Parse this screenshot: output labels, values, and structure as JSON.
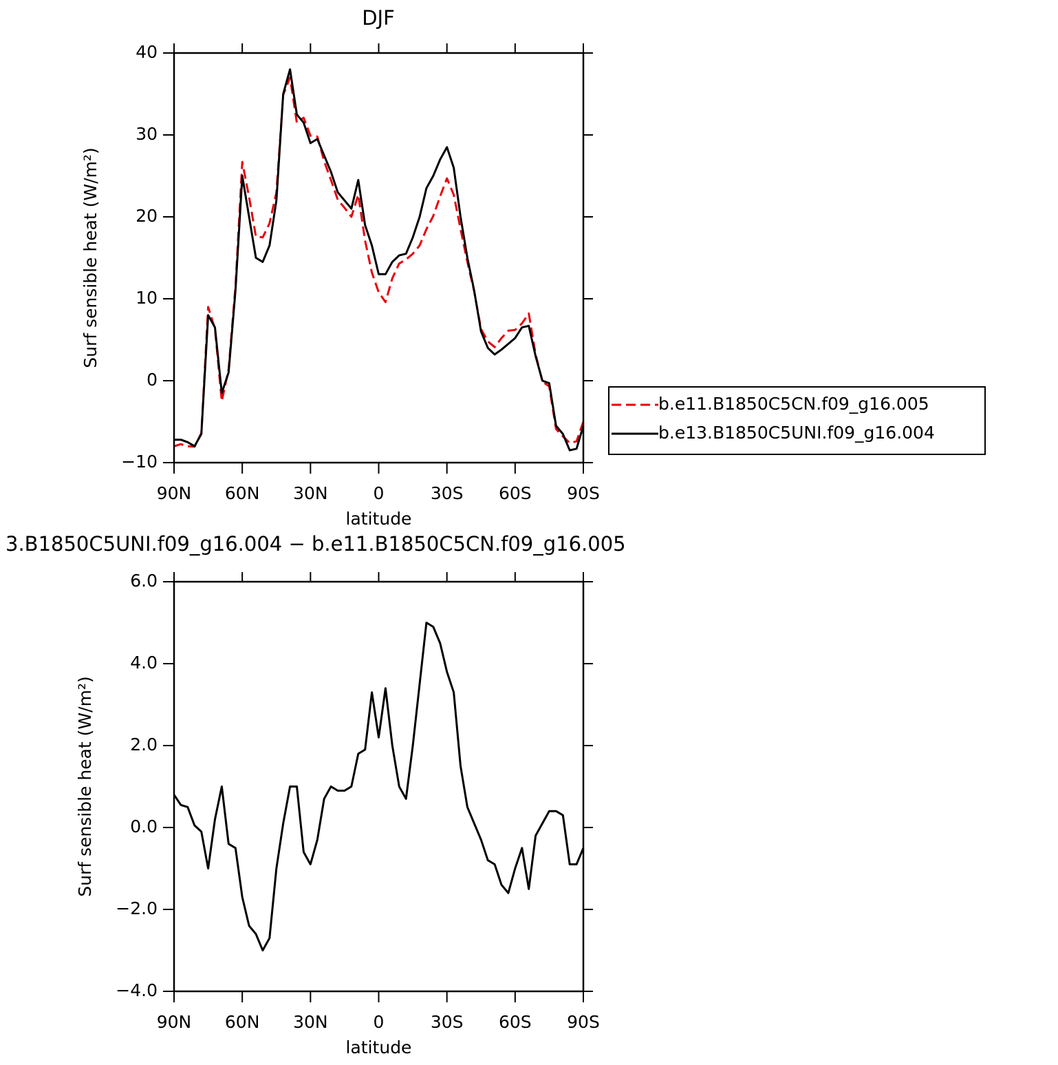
{
  "chart_data": [
    {
      "type": "line",
      "title": "DJF",
      "xlabel": "latitude",
      "ylabel": "Surf sensible heat (W/m²)",
      "x": [
        90,
        87,
        84,
        81,
        78,
        75,
        72,
        69,
        66,
        63,
        60,
        57,
        54,
        51,
        48,
        45,
        42,
        39,
        36,
        33,
        30,
        27,
        24,
        21,
        18,
        15,
        12,
        9,
        6,
        3,
        0,
        -3,
        -6,
        -9,
        -12,
        -15,
        -18,
        -21,
        -24,
        -27,
        -30,
        -33,
        -36,
        -39,
        -42,
        -45,
        -48,
        -51,
        -54,
        -57,
        -60,
        -63,
        -66,
        -69,
        -72,
        -75,
        -78,
        -81,
        -84,
        -87,
        -90
      ],
      "series": [
        {
          "name": "b.e11.B1850C5CN.f09_g16.005",
          "color": "#e8000b",
          "dash": "dashed",
          "values": [
            -8.0,
            -7.75,
            -8.0,
            -8.05,
            -6.4,
            9.0,
            6.3,
            -2.5,
            1.4,
            11.5,
            26.7,
            22.4,
            17.6,
            17.5,
            19.2,
            23,
            34.9,
            37,
            31.5,
            32.1,
            29.9,
            29.8,
            26.8,
            24.5,
            22.1,
            21.1,
            20,
            22.7,
            17.1,
            13.2,
            10.8,
            9.6,
            12.5,
            14.3,
            14.8,
            15.5,
            16.5,
            18.5,
            20.1,
            22.5,
            24.7,
            22.7,
            18.5,
            14.5,
            10.9,
            6.3,
            4.8,
            4.1,
            5.2,
            6.1,
            6.2,
            7.0,
            8.2,
            3.2,
            -0.1,
            -0.7,
            -5.9,
            -6.8,
            -7.6,
            -7.4,
            -5.0
          ]
        },
        {
          "name": "b.e13.B1850C5UNI.f09_g16.004",
          "color": "#000000",
          "dash": "solid",
          "values": [
            -7.2,
            -7.2,
            -7.5,
            -8.0,
            -6.5,
            8,
            6.5,
            -1.5,
            1,
            11,
            25,
            20,
            15,
            14.5,
            16.5,
            22,
            35,
            38,
            32.5,
            31.5,
            29,
            29.5,
            27.5,
            25.5,
            23,
            22,
            21,
            24.5,
            19,
            16.5,
            13,
            13,
            14.5,
            15.3,
            15.5,
            17.5,
            20,
            23.5,
            25,
            27,
            28.5,
            26,
            20,
            15,
            11,
            6,
            4,
            3.2,
            3.8,
            4.5,
            5.2,
            6.5,
            6.7,
            3,
            0,
            -0.3,
            -5.5,
            -6.5,
            -8.5,
            -8.3,
            -5.5
          ]
        }
      ],
      "xlim": [
        90,
        -90
      ],
      "xticks": [
        {
          "value": 90,
          "label": "90N"
        },
        {
          "value": 60,
          "label": "60N"
        },
        {
          "value": 30,
          "label": "30N"
        },
        0,
        {
          "value": -30,
          "label": "30S"
        },
        {
          "value": -60,
          "label": "60S"
        },
        {
          "value": -90,
          "label": "90S"
        }
      ],
      "ylim": [
        -10,
        40
      ],
      "yticks": [
        {
          "value": -10,
          "label": "−10"
        },
        0,
        10,
        20,
        30,
        40
      ],
      "legend": "right"
    },
    {
      "type": "line",
      "title": "3.B1850C5UNI.f09_g16.004 − b.e11.B1850C5CN.f09_g16.005",
      "xlabel": "latitude",
      "ylabel": "Surf sensible heat (W/m²)",
      "x": [
        90,
        87,
        84,
        81,
        78,
        75,
        72,
        69,
        66,
        63,
        60,
        57,
        54,
        51,
        48,
        45,
        42,
        39,
        36,
        33,
        30,
        27,
        24,
        21,
        18,
        15,
        12,
        9,
        6,
        3,
        0,
        -3,
        -6,
        -9,
        -12,
        -15,
        -18,
        -21,
        -24,
        -27,
        -30,
        -33,
        -36,
        -39,
        -42,
        -45,
        -48,
        -51,
        -54,
        -57,
        -60,
        -63,
        -66,
        -69,
        -72,
        -75,
        -78,
        -81,
        -84,
        -87,
        -90
      ],
      "series": [
        {
          "color": "#000000",
          "dash": "solid",
          "values": [
            0.8,
            0.55,
            0.5,
            0.05,
            -0.1,
            -1.0,
            0.2,
            1.0,
            -0.4,
            -0.5,
            -1.7,
            -2.4,
            -2.6,
            -3.0,
            -2.7,
            -1.0,
            0.1,
            1.0,
            1.0,
            -0.6,
            -0.9,
            -0.3,
            0.7,
            1.0,
            0.9,
            0.9,
            1.0,
            1.8,
            1.9,
            3.3,
            2.2,
            3.4,
            2.0,
            1.0,
            0.7,
            2.0,
            3.5,
            5.0,
            4.9,
            4.5,
            3.8,
            3.3,
            1.5,
            0.5,
            0.1,
            -0.3,
            -0.8,
            -0.9,
            -1.4,
            -1.6,
            -1.0,
            -0.5,
            -1.5,
            -0.2,
            0.1,
            0.4,
            0.4,
            0.3,
            -0.9,
            -0.9,
            -0.5
          ]
        }
      ],
      "xlim": [
        90,
        -90
      ],
      "xticks": [
        {
          "value": 90,
          "label": "90N"
        },
        {
          "value": 60,
          "label": "60N"
        },
        {
          "value": 30,
          "label": "30N"
        },
        0,
        {
          "value": -30,
          "label": "30S"
        },
        {
          "value": -60,
          "label": "60S"
        },
        {
          "value": -90,
          "label": "90S"
        }
      ],
      "ylim": [
        -4,
        6
      ],
      "yticks": [
        {
          "value": -4,
          "label": "−4.0"
        },
        {
          "value": -2,
          "label": "−2.0"
        },
        {
          "value": 0,
          "label": "0.0"
        },
        {
          "value": 2,
          "label": "2.0"
        },
        {
          "value": 4,
          "label": "4.0"
        },
        {
          "value": 6,
          "label": "6.0"
        }
      ]
    }
  ]
}
